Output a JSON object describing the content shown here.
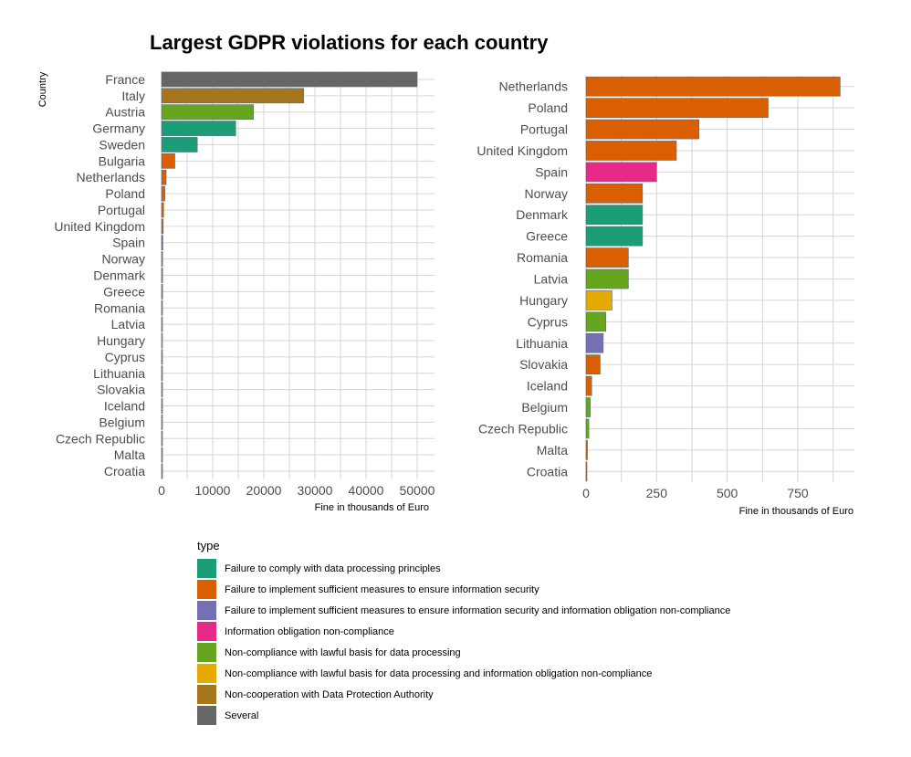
{
  "title": "Largest GDPR violations for each country",
  "colors": {
    "Failure to comply with data processing principles": "#1b9e77",
    "Failure to implement sufficient measures to ensure information security": "#d95f02",
    "Failure to implement sufficient measures to ensure information security and information obligation non-compliance": "#7570b3",
    "Information obligation non-compliance": "#e7298a",
    "Non-compliance with lawful basis for data processing": "#66a61e",
    "Non-compliance with lawful basis for data processing and information obligation non-compliance": "#e6ab02",
    "Non-cooperation with Data Protection Authority": "#a6761d",
    "Several": "#666666"
  },
  "legend": {
    "title": "type",
    "items": [
      "Failure to comply with data processing principles",
      "Failure to implement sufficient measures to ensure information security",
      "Failure to implement sufficient measures to ensure information security and information obligation non-compliance",
      "Information obligation non-compliance",
      "Non-compliance with lawful basis for data processing",
      "Non-compliance with lawful basis for data processing and information obligation non-compliance",
      "Non-cooperation with Data Protection Authority",
      "Several"
    ]
  },
  "chart_data": [
    {
      "type": "bar",
      "orientation": "horizontal",
      "ylabel": "Country",
      "xlabel": "Fine in thousands of Euro",
      "xlim": [
        0,
        50000
      ],
      "xticks": [
        0,
        10000,
        20000,
        30000,
        40000,
        50000
      ],
      "grid": true,
      "categories": [
        "France",
        "Italy",
        "Austria",
        "Germany",
        "Sweden",
        "Bulgaria",
        "Netherlands",
        "Poland",
        "Portugal",
        "United Kingdom",
        "Spain",
        "Norway",
        "Denmark",
        "Greece",
        "Romania",
        "Latvia",
        "Hungary",
        "Cyprus",
        "Lithuania",
        "Slovakia",
        "Iceland",
        "Belgium",
        "Czech Republic",
        "Malta",
        "Croatia"
      ],
      "values": [
        50000,
        27800,
        18000,
        14500,
        7000,
        2600,
        900,
        645,
        400,
        320,
        250,
        200,
        200,
        200,
        150,
        150,
        92,
        70,
        61,
        50,
        20,
        15,
        10,
        5,
        1
      ],
      "types": [
        "Several",
        "Non-cooperation with Data Protection Authority",
        "Non-compliance with lawful basis for data processing",
        "Failure to comply with data processing principles",
        "Failure to comply with data processing principles",
        "Failure to implement sufficient measures to ensure information security",
        "Failure to implement sufficient measures to ensure information security",
        "Failure to implement sufficient measures to ensure information security",
        "Failure to implement sufficient measures to ensure information security",
        "Failure to implement sufficient measures to ensure information security",
        "Information obligation non-compliance",
        "Failure to implement sufficient measures to ensure information security",
        "Failure to comply with data processing principles",
        "Failure to comply with data processing principles",
        "Failure to implement sufficient measures to ensure information security",
        "Non-compliance with lawful basis for data processing",
        "Non-compliance with lawful basis for data processing and information obligation non-compliance",
        "Non-compliance with lawful basis for data processing",
        "Failure to implement sufficient measures to ensure information security and information obligation non-compliance",
        "Failure to implement sufficient measures to ensure information security",
        "Failure to implement sufficient measures to ensure information security",
        "Non-compliance with lawful basis for data processing",
        "Non-compliance with lawful basis for data processing",
        "Failure to implement sufficient measures to ensure information security",
        "Failure to implement sufficient measures to ensure information security"
      ]
    },
    {
      "type": "bar",
      "orientation": "horizontal",
      "xlabel": "Fine in thousands of Euro",
      "xlim": [
        0,
        950
      ],
      "xticks": [
        0,
        250,
        500,
        750
      ],
      "grid": true,
      "categories": [
        "Netherlands",
        "Poland",
        "Portugal",
        "United Kingdom",
        "Spain",
        "Norway",
        "Denmark",
        "Greece",
        "Romania",
        "Latvia",
        "Hungary",
        "Cyprus",
        "Lithuania",
        "Slovakia",
        "Iceland",
        "Belgium",
        "Czech Republic",
        "Malta",
        "Croatia"
      ],
      "values": [
        900,
        645,
        400,
        320,
        250,
        200,
        200,
        200,
        150,
        150,
        92,
        70,
        61,
        50,
        20,
        15,
        10,
        5,
        1
      ],
      "types": [
        "Failure to implement sufficient measures to ensure information security",
        "Failure to implement sufficient measures to ensure information security",
        "Failure to implement sufficient measures to ensure information security",
        "Failure to implement sufficient measures to ensure information security",
        "Information obligation non-compliance",
        "Failure to implement sufficient measures to ensure information security",
        "Failure to comply with data processing principles",
        "Failure to comply with data processing principles",
        "Failure to implement sufficient measures to ensure information security",
        "Non-compliance with lawful basis for data processing",
        "Non-compliance with lawful basis for data processing and information obligation non-compliance",
        "Non-compliance with lawful basis for data processing",
        "Failure to implement sufficient measures to ensure information security and information obligation non-compliance",
        "Failure to implement sufficient measures to ensure information security",
        "Failure to implement sufficient measures to ensure information security",
        "Non-compliance with lawful basis for data processing",
        "Non-compliance with lawful basis for data processing",
        "Failure to implement sufficient measures to ensure information security",
        "Failure to implement sufficient measures to ensure information security"
      ]
    }
  ]
}
